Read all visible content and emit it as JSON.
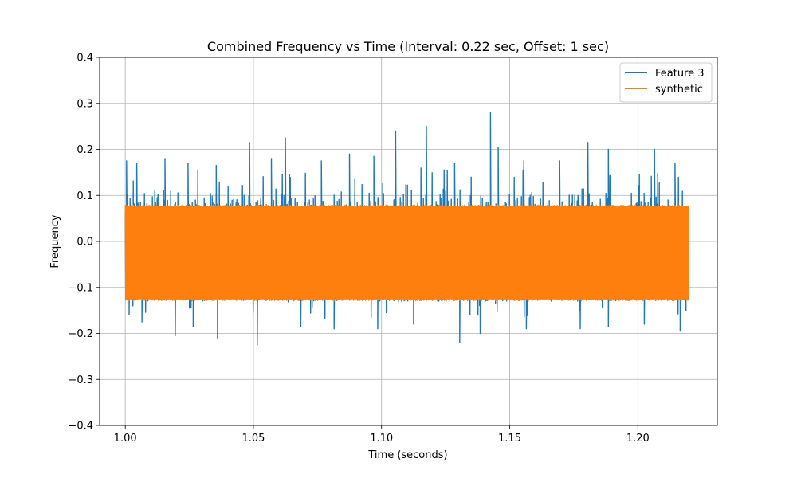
{
  "chart_data": {
    "type": "line",
    "title": "Combined Frequency vs Time (Interval: 0.22 sec, Offset: 1 sec)",
    "xlabel": "Time (seconds)",
    "ylabel": "Frequency",
    "xlim": [
      0.99,
      1.231
    ],
    "ylim": [
      -0.4,
      0.4
    ],
    "xticks": [
      1.0,
      1.05,
      1.1,
      1.15,
      1.2
    ],
    "xtick_labels": [
      "1.00",
      "1.05",
      "1.10",
      "1.15",
      "1.20"
    ],
    "yticks": [
      -0.4,
      -0.3,
      -0.2,
      -0.1,
      0.0,
      0.1,
      0.2,
      0.3,
      0.4
    ],
    "ytick_labels": [
      "−0.4",
      "−0.3",
      "−0.2",
      "−0.1",
      "0.0",
      "0.1",
      "0.2",
      "0.3",
      "0.4"
    ],
    "grid": true,
    "legend_position": "upper right",
    "series": [
      {
        "name": "Feature 3",
        "color": "#1f77b4",
        "x_range": [
          1.0,
          1.22
        ],
        "typical_band": [
          -0.13,
          0.12
        ],
        "peaks": [
          {
            "x": 1.0005,
            "y": 0.175
          },
          {
            "x": 1.0045,
            "y": 0.17
          },
          {
            "x": 1.0155,
            "y": 0.18
          },
          {
            "x": 1.0245,
            "y": 0.17
          },
          {
            "x": 1.0355,
            "y": 0.165
          },
          {
            "x": 1.0485,
            "y": 0.215
          },
          {
            "x": 1.057,
            "y": 0.18
          },
          {
            "x": 1.0625,
            "y": 0.225
          },
          {
            "x": 1.0765,
            "y": 0.175
          },
          {
            "x": 1.0875,
            "y": 0.19
          },
          {
            "x": 1.097,
            "y": 0.185
          },
          {
            "x": 1.1055,
            "y": 0.24
          },
          {
            "x": 1.1175,
            "y": 0.25
          },
          {
            "x": 1.1285,
            "y": 0.17
          },
          {
            "x": 1.1425,
            "y": 0.28
          },
          {
            "x": 1.1455,
            "y": 0.205
          },
          {
            "x": 1.1555,
            "y": 0.175
          },
          {
            "x": 1.1695,
            "y": 0.175
          },
          {
            "x": 1.1805,
            "y": 0.215
          },
          {
            "x": 1.1885,
            "y": 0.2
          },
          {
            "x": 1.2065,
            "y": 0.2
          },
          {
            "x": 1.2145,
            "y": 0.17
          }
        ],
        "troughs": [
          {
            "x": 1.0015,
            "y": -0.16
          },
          {
            "x": 1.0065,
            "y": -0.175
          },
          {
            "x": 1.0195,
            "y": -0.205
          },
          {
            "x": 1.0265,
            "y": -0.185
          },
          {
            "x": 1.036,
            "y": -0.21
          },
          {
            "x": 1.0515,
            "y": -0.225
          },
          {
            "x": 1.0685,
            "y": -0.185
          },
          {
            "x": 1.0815,
            "y": -0.19
          },
          {
            "x": 1.0985,
            "y": -0.19
          },
          {
            "x": 1.1125,
            "y": -0.18
          },
          {
            "x": 1.1305,
            "y": -0.22
          },
          {
            "x": 1.1385,
            "y": -0.2
          },
          {
            "x": 1.1565,
            "y": -0.19
          },
          {
            "x": 1.1775,
            "y": -0.19
          },
          {
            "x": 1.1885,
            "y": -0.185
          },
          {
            "x": 1.2025,
            "y": -0.18
          },
          {
            "x": 1.2165,
            "y": -0.195
          }
        ]
      },
      {
        "name": "synthetic",
        "color": "#ff7f0e",
        "x_range": [
          1.0,
          1.22
        ],
        "band": [
          -0.13,
          0.08
        ]
      }
    ]
  }
}
